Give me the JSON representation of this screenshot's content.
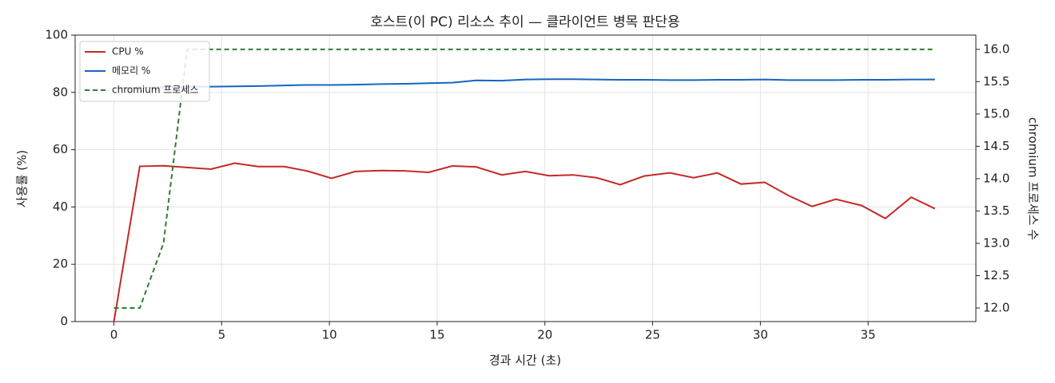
{
  "chart_data": {
    "type": "line",
    "title": "호스트(이 PC) 리소스 추이 — 클라이언트 병목 판단용",
    "xlabel": "경과 시간 (초)",
    "ylabel": "사용률 (%)",
    "y2label": "chromium 프로세스 수",
    "x": [
      0,
      1.2,
      2.3,
      3.4,
      4.5,
      5.6,
      6.7,
      7.9,
      9.0,
      10.1,
      11.2,
      12.4,
      13.5,
      14.6,
      15.7,
      16.8,
      18.0,
      19.1,
      20.2,
      21.3,
      22.4,
      23.5,
      24.6,
      25.8,
      26.9,
      28.0,
      29.1,
      30.2,
      31.3,
      32.4,
      33.5,
      34.7,
      35.8,
      37.0,
      38.1
    ],
    "series": [
      {
        "name": "CPU %",
        "color": "#c62828",
        "axis": "y",
        "linestyle": "solid",
        "values": [
          0,
          54.2,
          54.4,
          53.8,
          53.2,
          55.3,
          54.1,
          54.1,
          52.5,
          50.0,
          52.4,
          52.7,
          52.6,
          52.1,
          54.3,
          54.0,
          51.2,
          52.4,
          50.9,
          51.2,
          50.2,
          47.8,
          50.8,
          51.9,
          50.2,
          51.9,
          48.0,
          48.6,
          44.0,
          40.2,
          42.7,
          40.5,
          36.0,
          43.4,
          39.4
        ]
      },
      {
        "name": "메모리 %",
        "color": "#1565c0",
        "axis": "y",
        "linestyle": "solid",
        "values": [
          81.5,
          81.7,
          81.8,
          82.0,
          82.0,
          82.1,
          82.2,
          82.4,
          82.6,
          82.6,
          82.7,
          82.9,
          83.0,
          83.2,
          83.4,
          84.2,
          84.1,
          84.5,
          84.6,
          84.6,
          84.5,
          84.4,
          84.4,
          84.3,
          84.3,
          84.4,
          84.4,
          84.5,
          84.3,
          84.3,
          84.3,
          84.4,
          84.4,
          84.5,
          84.5
        ]
      },
      {
        "name": "chromium 프로세스",
        "color": "#2e7d32",
        "axis": "y2",
        "linestyle": "dashed",
        "values": [
          12,
          12,
          13,
          16,
          16,
          16,
          16,
          16,
          16,
          16,
          16,
          16,
          16,
          16,
          16,
          16,
          16,
          16,
          16,
          16,
          16,
          16,
          16,
          16,
          16,
          16,
          16,
          16,
          16,
          16,
          16,
          16,
          16,
          16,
          16
        ]
      }
    ],
    "xlim": [
      -1.8,
      40.0
    ],
    "xticks": [
      0,
      5,
      10,
      15,
      20,
      25,
      30,
      35
    ],
    "ylim": [
      0,
      100
    ],
    "yticks": [
      0,
      20,
      40,
      60,
      80,
      100
    ],
    "y2lim": [
      11.79,
      16.22
    ],
    "y2ticks": [
      {
        "value": 12,
        "label": "12.0"
      },
      12.5,
      {
        "value": 13,
        "label": "13.0"
      },
      13.5,
      {
        "value": 14,
        "label": "14.0"
      },
      14.5,
      {
        "value": 15,
        "label": "15.0"
      },
      15.5,
      {
        "value": 16,
        "label": "16.0"
      }
    ],
    "grid": true,
    "legend": "upper-left"
  }
}
